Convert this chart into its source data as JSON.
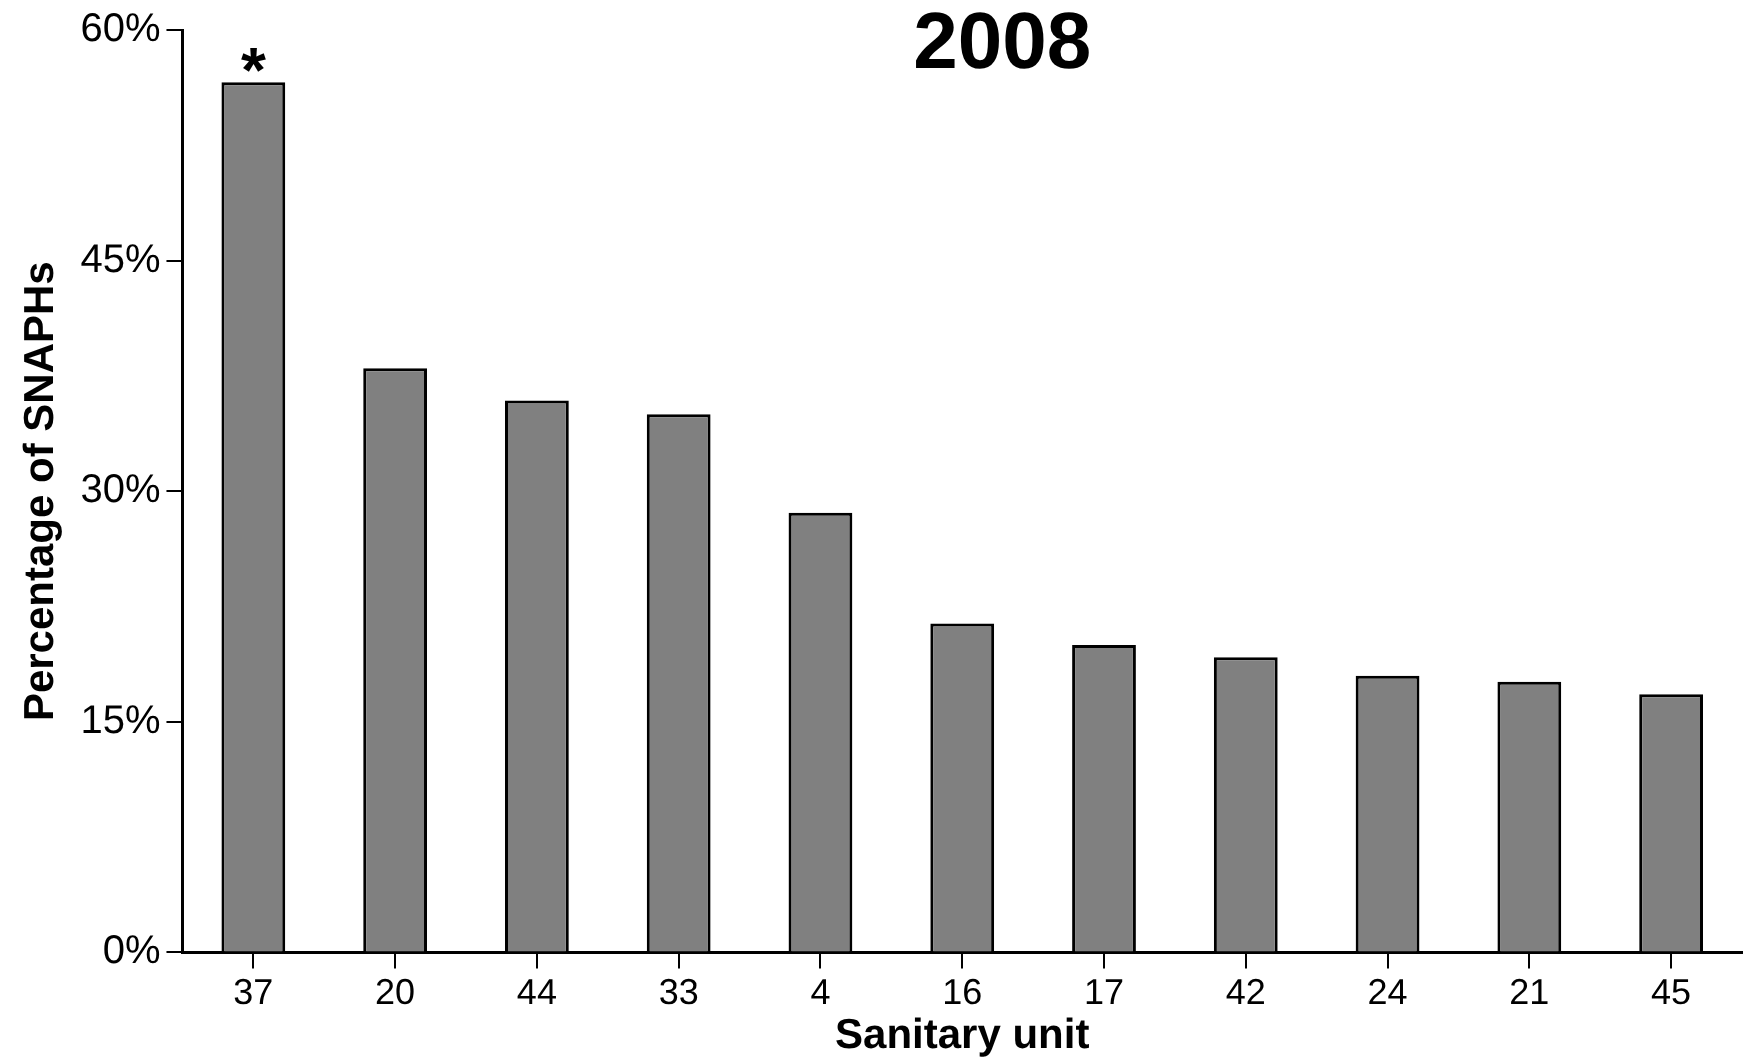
{
  "chart_data": {
    "type": "bar",
    "title": "2008",
    "xlabel": "Sanitary unit",
    "ylabel": "Percentage of SNAPHs",
    "categories": [
      "37",
      "20",
      "44",
      "33",
      "4",
      "16",
      "17",
      "42",
      "24",
      "21",
      "45"
    ],
    "values": [
      56.6,
      38.0,
      35.9,
      35.0,
      28.6,
      21.4,
      20.0,
      19.2,
      18.0,
      17.6,
      16.8
    ],
    "color": "#808080",
    "ylim": [
      0,
      60
    ],
    "yticks": [
      {
        "value": 0,
        "label": "0%"
      },
      {
        "value": 15,
        "label": "15%"
      },
      {
        "value": 30,
        "label": "30%"
      },
      {
        "value": 45,
        "label": "45%"
      },
      {
        "value": 60,
        "label": "60%"
      }
    ],
    "annotations": [
      {
        "text": "*",
        "x": "37",
        "y": 56.6
      }
    ]
  }
}
